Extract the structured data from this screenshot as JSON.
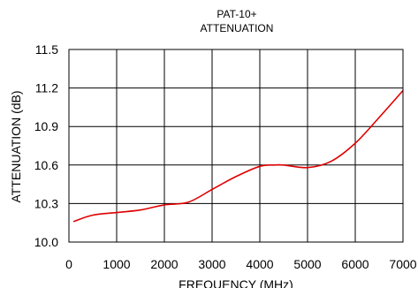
{
  "chart_data": {
    "type": "line",
    "title": "PAT-10+",
    "subtitle": "ATTENUATION",
    "xlabel": "FREQUENCY (MHz)",
    "ylabel": "ATTENUATION (dB)",
    "xlim": [
      0,
      7000
    ],
    "ylim": [
      10.0,
      11.5
    ],
    "x_ticks": [
      "0",
      "1000",
      "2000",
      "3000",
      "4000",
      "5000",
      "6000",
      "7000"
    ],
    "y_ticks": [
      "10.0",
      "10.3",
      "10.6",
      "10.9",
      "11.2",
      "11.5"
    ],
    "grid": true,
    "series": [
      {
        "color": "#e00000",
        "x": [
          100,
          500,
          1000,
          1500,
          2000,
          2500,
          3000,
          3500,
          4000,
          4300,
          4500,
          5000,
          5500,
          6000,
          6500,
          7000
        ],
        "y": [
          10.16,
          10.21,
          10.23,
          10.25,
          10.29,
          10.31,
          10.41,
          10.51,
          10.59,
          10.6,
          10.6,
          10.58,
          10.63,
          10.77,
          10.97,
          11.18
        ]
      }
    ]
  }
}
